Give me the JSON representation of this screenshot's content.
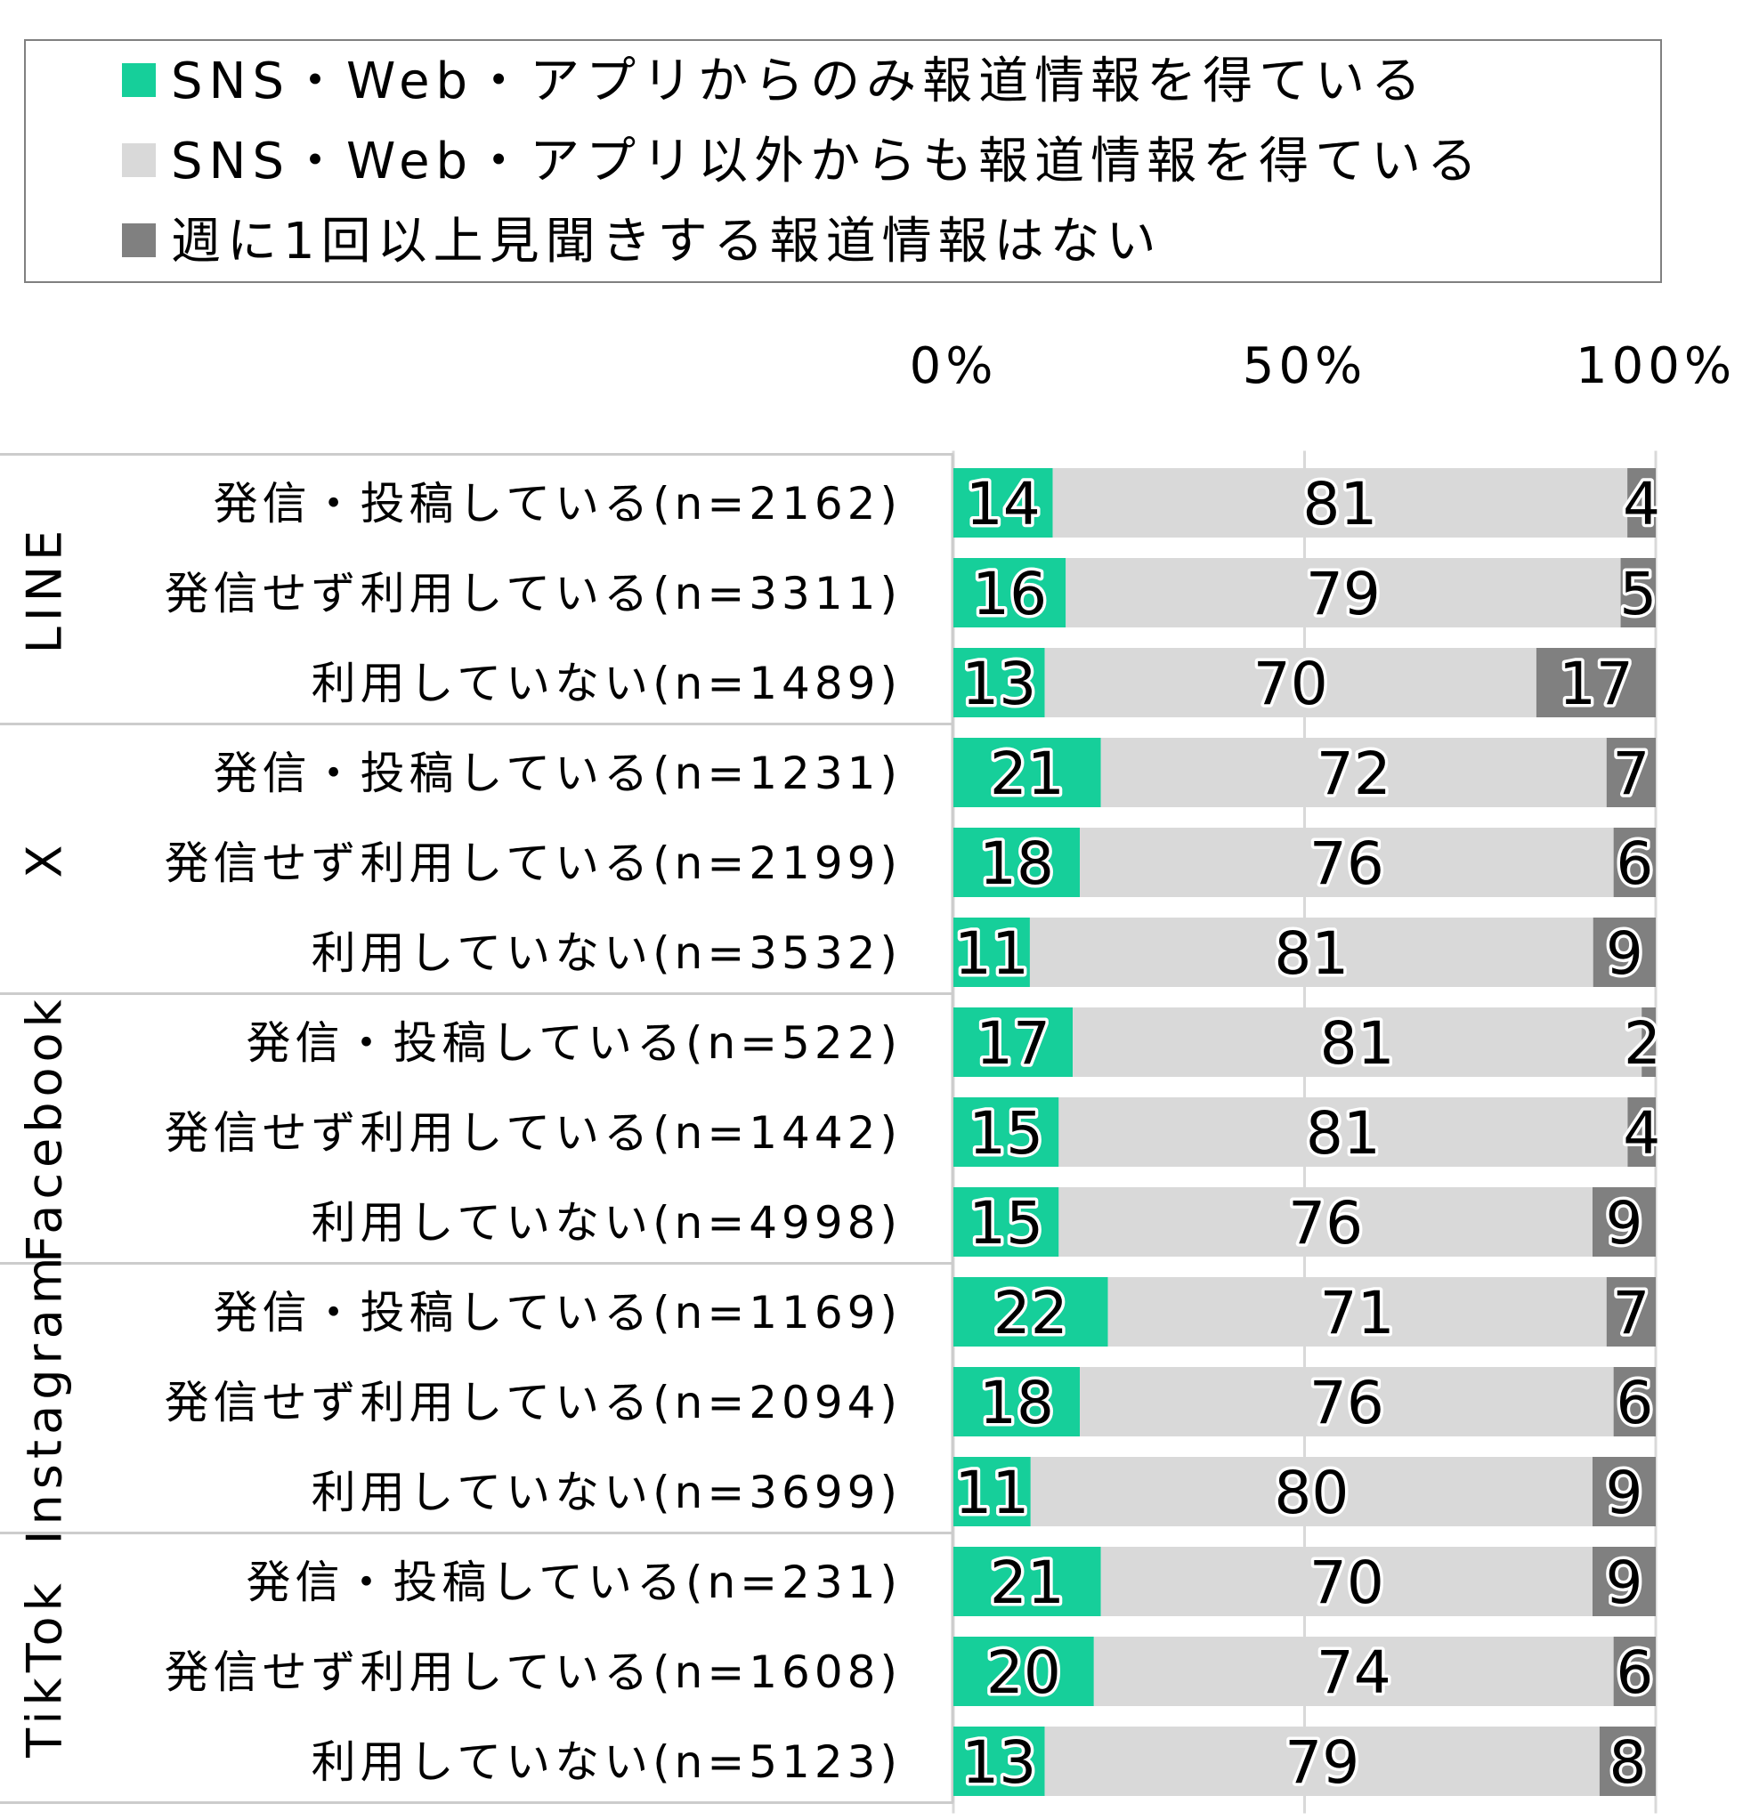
{
  "legend": [
    {
      "label": "SNS・Web・アプリからのみ報道情報を得ている",
      "color": "#16CF9A"
    },
    {
      "label": "SNS・Web・アプリ以外からも報道情報を得ている",
      "color": "#D9D9D9"
    },
    {
      "label": "週に1回以上見聞きする報道情報はない",
      "color": "#808080"
    }
  ],
  "chart_data": {
    "type": "bar",
    "orientation": "horizontal",
    "stacked": "percent",
    "xlim": [
      0,
      100
    ],
    "x_ticks": [
      "0%",
      "50%",
      "100%"
    ],
    "grid": true,
    "legend_position": "top",
    "groups": [
      {
        "name": "LINE",
        "rows": [
          {
            "label": "発信・投稿している(n=2162)",
            "values": [
              14,
              81,
              4
            ]
          },
          {
            "label": "発信せず利用している(n=3311)",
            "values": [
              16,
              79,
              5
            ]
          },
          {
            "label": "利用していない(n=1489)",
            "values": [
              13,
              70,
              17
            ]
          }
        ]
      },
      {
        "name": "X",
        "rows": [
          {
            "label": "発信・投稿している(n=1231)",
            "values": [
              21,
              72,
              7
            ]
          },
          {
            "label": "発信せず利用している(n=2199)",
            "values": [
              18,
              76,
              6
            ]
          },
          {
            "label": "利用していない(n=3532)",
            "values": [
              11,
              81,
              9
            ]
          }
        ]
      },
      {
        "name": "Facebook",
        "rows": [
          {
            "label": "発信・投稿している(n=522)",
            "values": [
              17,
              81,
              2
            ]
          },
          {
            "label": "発信せず利用している(n=1442)",
            "values": [
              15,
              81,
              4
            ]
          },
          {
            "label": "利用していない(n=4998)",
            "values": [
              15,
              76,
              9
            ]
          }
        ]
      },
      {
        "name": "Instagram",
        "rows": [
          {
            "label": "発信・投稿している(n=1169)",
            "values": [
              22,
              71,
              7
            ]
          },
          {
            "label": "発信せず利用している(n=2094)",
            "values": [
              18,
              76,
              6
            ]
          },
          {
            "label": "利用していない(n=3699)",
            "values": [
              11,
              80,
              9
            ]
          }
        ]
      },
      {
        "name": "TikTok",
        "rows": [
          {
            "label": "発信・投稿している(n=231)",
            "values": [
              21,
              70,
              9
            ]
          },
          {
            "label": "発信せず利用している(n=1608)",
            "values": [
              20,
              74,
              6
            ]
          },
          {
            "label": "利用していない(n=5123)",
            "values": [
              13,
              79,
              8
            ]
          }
        ]
      }
    ]
  }
}
